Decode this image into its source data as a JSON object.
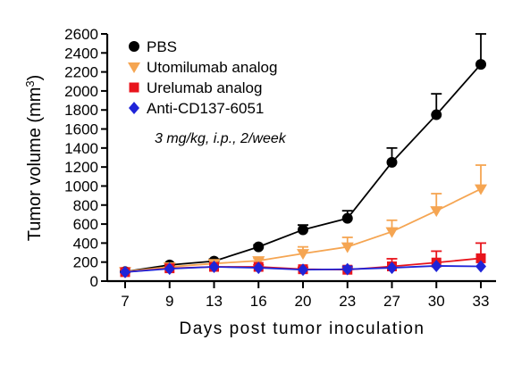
{
  "chart_data": {
    "type": "line",
    "title": "",
    "xlabel": "Days post tumor inoculation",
    "ylabel": "Tumor volume (mm",
    "ylabel_sup": "3",
    "ylabel_close": ")",
    "x": [
      7,
      9,
      13,
      16,
      20,
      23,
      27,
      30,
      33
    ],
    "x_tick_labels": [
      "7",
      "9",
      "13",
      "16",
      "20",
      "23",
      "27",
      "30",
      "33"
    ],
    "y_ticks": [
      0,
      200,
      400,
      600,
      800,
      1000,
      1200,
      1400,
      1600,
      1800,
      2000,
      2200,
      2400,
      2600
    ],
    "y_tick_labels": [
      "0",
      "200",
      "400",
      "600",
      "800",
      "1000",
      "1200",
      "1400",
      "1600",
      "1800",
      "2000",
      "2200",
      "2400",
      "2600"
    ],
    "ylim": [
      0,
      2600
    ],
    "grid": false,
    "legend_position": "top-left",
    "annotation": "3 mg/kg, i.p., 2/week",
    "series": [
      {
        "name": "PBS",
        "color": "#000000",
        "marker": "circle",
        "values": [
          100,
          170,
          210,
          360,
          540,
          660,
          1250,
          1750,
          2280
        ],
        "errors": [
          0,
          0,
          20,
          20,
          50,
          80,
          150,
          220,
          320
        ]
      },
      {
        "name": "Utomilumab analog",
        "color": "#f5a552",
        "marker": "triangle-down",
        "values": [
          100,
          150,
          185,
          215,
          290,
          360,
          520,
          740,
          970
        ],
        "errors": [
          0,
          0,
          0,
          25,
          70,
          100,
          120,
          180,
          250
        ]
      },
      {
        "name": "Urelumab analog",
        "color": "#e8141c",
        "marker": "square",
        "values": [
          95,
          135,
          150,
          150,
          125,
          120,
          155,
          195,
          240
        ],
        "errors": [
          0,
          0,
          0,
          20,
          20,
          20,
          80,
          120,
          160
        ]
      },
      {
        "name": "Anti-CD137-6051",
        "color": "#1f24d8",
        "marker": "diamond",
        "values": [
          95,
          130,
          150,
          140,
          120,
          125,
          140,
          160,
          155
        ],
        "errors": [
          0,
          0,
          0,
          0,
          0,
          30,
          0,
          0,
          0
        ]
      }
    ]
  }
}
